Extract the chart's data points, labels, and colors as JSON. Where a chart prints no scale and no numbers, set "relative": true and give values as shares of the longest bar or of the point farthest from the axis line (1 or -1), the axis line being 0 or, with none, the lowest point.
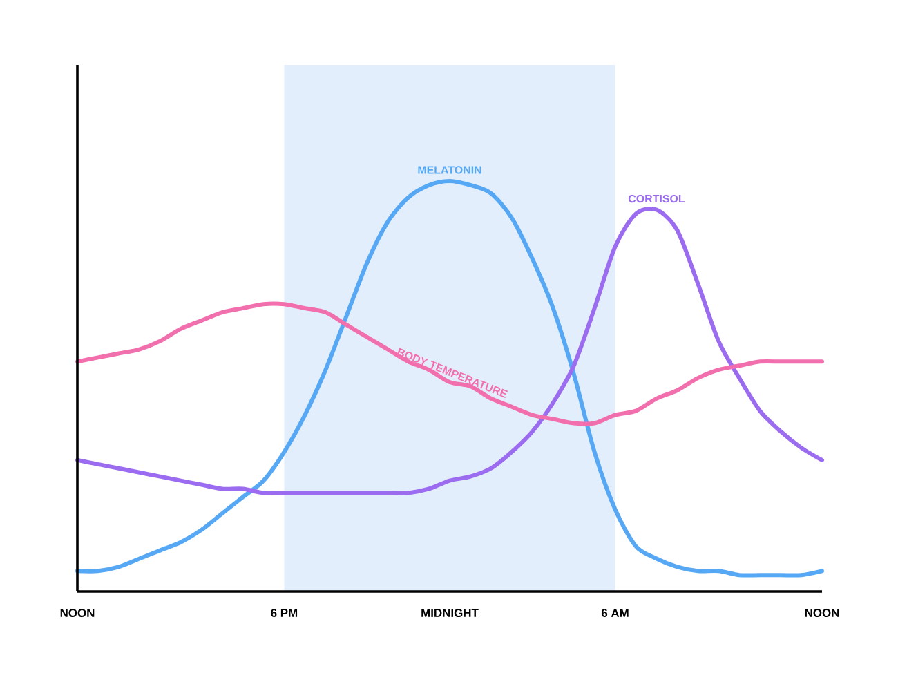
{
  "chart_data": {
    "type": "line",
    "relative": true,
    "line_style": "solid",
    "categories": [
      "NOON",
      null,
      null,
      null,
      null,
      null,
      null,
      null,
      null,
      null,
      "6 PM",
      null,
      null,
      null,
      null,
      null,
      null,
      null,
      "MIDNIGHT",
      null,
      null,
      null,
      null,
      null,
      null,
      null,
      "6 AM",
      null,
      null,
      null,
      null,
      null,
      null,
      null,
      null,
      null,
      "NOON"
    ],
    "bands": [
      {
        "axis": "x",
        "from": "6 PM",
        "to": "6 AM",
        "color": "#e3eefc"
      }
    ],
    "series": [
      {
        "name": "MELATONIN",
        "color": "#56a8f5",
        "values": [
          0.05,
          0.05,
          0.06,
          0.08,
          0.1,
          0.12,
          0.15,
          0.19,
          0.23,
          0.27,
          0.34,
          0.43,
          0.54,
          0.67,
          0.8,
          0.9,
          0.96,
          0.99,
          1.0,
          0.99,
          0.97,
          0.91,
          0.81,
          0.69,
          0.53,
          0.34,
          0.2,
          0.11,
          0.08,
          0.06,
          0.05,
          0.05,
          0.04,
          0.04,
          0.04,
          0.04,
          0.05
        ]
      },
      {
        "name": "CORTISOL",
        "color": "#9b6cf0",
        "values": [
          0.32,
          0.31,
          0.3,
          0.29,
          0.28,
          0.27,
          0.26,
          0.25,
          0.25,
          0.24,
          0.24,
          0.24,
          0.24,
          0.24,
          0.24,
          0.24,
          0.24,
          0.25,
          0.27,
          0.28,
          0.3,
          0.34,
          0.39,
          0.46,
          0.55,
          0.69,
          0.84,
          0.92,
          0.93,
          0.88,
          0.75,
          0.61,
          0.52,
          0.44,
          0.39,
          0.35,
          0.32
        ]
      },
      {
        "name": "BODY TEMPERATURE",
        "color": "#f26fae",
        "values": [
          0.56,
          0.57,
          0.58,
          0.59,
          0.61,
          0.64,
          0.66,
          0.68,
          0.69,
          0.7,
          0.7,
          0.69,
          0.68,
          0.65,
          0.62,
          0.59,
          0.56,
          0.54,
          0.51,
          0.5,
          0.47,
          0.45,
          0.43,
          0.42,
          0.41,
          0.41,
          0.43,
          0.44,
          0.47,
          0.49,
          0.52,
          0.54,
          0.55,
          0.56,
          0.56,
          0.56,
          0.56
        ]
      }
    ]
  }
}
